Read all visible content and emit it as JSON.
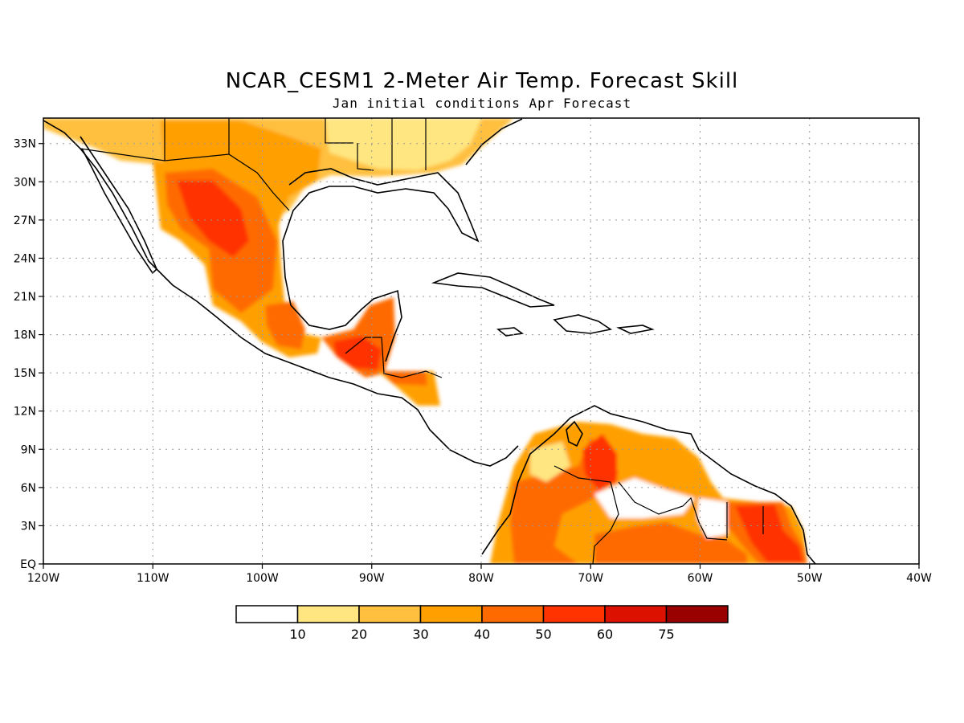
{
  "title": "NCAR_CESM1 2-Meter Air Temp. Forecast Skill",
  "subtitle": "Jan initial conditions  Apr Forecast",
  "map": {
    "lon_range": [
      -120,
      -40
    ],
    "lat_range": [
      0,
      35
    ],
    "lon_ticks": [
      {
        "value": -120,
        "label": "120W"
      },
      {
        "value": -110,
        "label": "110W"
      },
      {
        "value": -100,
        "label": "100W"
      },
      {
        "value": -90,
        "label": "90W"
      },
      {
        "value": -80,
        "label": "80W"
      },
      {
        "value": -70,
        "label": "70W"
      },
      {
        "value": -60,
        "label": "60W"
      },
      {
        "value": -50,
        "label": "50W"
      },
      {
        "value": -40,
        "label": "40W"
      }
    ],
    "lat_ticks": [
      {
        "value": 0,
        "label": "EQ"
      },
      {
        "value": 3,
        "label": "3N"
      },
      {
        "value": 6,
        "label": "6N"
      },
      {
        "value": 9,
        "label": "9N"
      },
      {
        "value": 12,
        "label": "12N"
      },
      {
        "value": 15,
        "label": "15N"
      },
      {
        "value": 18,
        "label": "18N"
      },
      {
        "value": 21,
        "label": "21N"
      },
      {
        "value": 24,
        "label": "24N"
      },
      {
        "value": 27,
        "label": "27N"
      },
      {
        "value": 30,
        "label": "30N"
      },
      {
        "value": 33,
        "label": "33N"
      }
    ],
    "grid": true
  },
  "colorbar": {
    "colors": [
      "#ffffff",
      "#ffe680",
      "#ffc040",
      "#ffa000",
      "#ff6a00",
      "#ff3300",
      "#dd1100",
      "#990000"
    ],
    "labels": [
      "10",
      "20",
      "30",
      "40",
      "50",
      "60",
      "75"
    ]
  }
}
